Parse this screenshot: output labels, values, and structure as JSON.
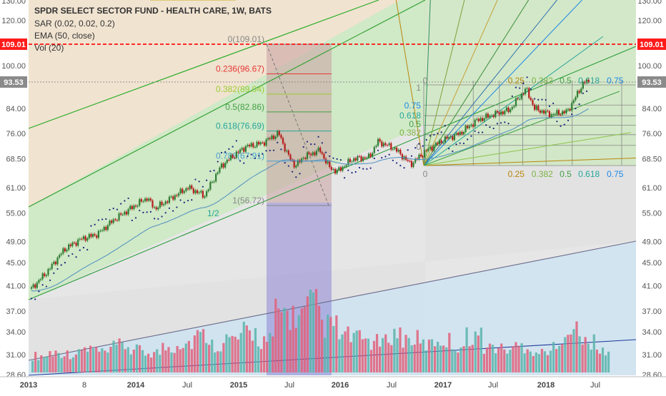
{
  "legend": {
    "title": "SPDR SELECT SECTOR FUND - HEALTH CARE, 1W, BATS",
    "lines": [
      "SAR (0.02, 0.02, 0.2)",
      "EMA (50, close)",
      "Vol (20)"
    ]
  },
  "colors": {
    "price_up": "#2f7d32",
    "price_down": "#b71c1c",
    "vol_up": "#5ab4ac",
    "vol_down": "#e0607a",
    "sar": "#1a237e",
    "ema": "#4f8fc0",
    "hline_red": "#ff0000",
    "badge_red": "#ff1a1a",
    "badge_gray": "#8a8a8a",
    "fib_zone": "#4a4a9a"
  },
  "price_badges": [
    {
      "value": "109.01",
      "style": "red"
    },
    {
      "value": "93.53",
      "style": "gray"
    }
  ],
  "fib_retracement": {
    "levels": [
      {
        "ratio": "0",
        "price": 109.01,
        "label": "0(109.01)",
        "color": "#888888"
      },
      {
        "ratio": "0.236",
        "price": 96.67,
        "label": "0.236(96.67)",
        "color": "#e53935"
      },
      {
        "ratio": "0.382",
        "price": 89.04,
        "label": "0.382(89.04)",
        "color": "#9ccc33"
      },
      {
        "ratio": "0.5",
        "price": 82.86,
        "label": "0.5(82.86)",
        "color": "#43a047"
      },
      {
        "ratio": "0.618",
        "price": 76.69,
        "label": "0.618(76.69)",
        "color": "#26a69a"
      },
      {
        "ratio": "0.786",
        "price": 67.91,
        "label": "0.786(67.91)",
        "color": "#4aa0d0"
      },
      {
        "ratio": "1",
        "price": 56.72,
        "label": "1(56.72)",
        "color": "#888888"
      }
    ],
    "half_label": "1/2"
  },
  "gann_box": {
    "top_labels": [
      "0",
      "0.25",
      "0.382",
      "0.5",
      "0.618",
      "0.75"
    ],
    "bottom_labels": [
      "0",
      "0.25",
      "0.382",
      "0.5",
      "0.618",
      "0.75"
    ],
    "left_labels": [
      "1",
      "0.75",
      "0.618",
      "0.5",
      "0.382",
      "0"
    ],
    "top_colors": [
      "#888888",
      "#b8860b",
      "#7cb342",
      "#43a047",
      "#26a69a",
      "#1e88e5"
    ]
  },
  "chart_data": {
    "type": "candlestick",
    "title": "SPDR SELECT SECTOR FUND - HEALTH CARE, 1W, BATS",
    "x_ticks": [
      "2013",
      "8",
      "2014",
      "Jul",
      "2015",
      "Jul",
      "2016",
      "Jul",
      "2017",
      "Jul",
      "2018",
      "Jul"
    ],
    "y_ticks": [
      "130.00",
      "120.00",
      "109.01",
      "100.00",
      "93.53",
      "84.00",
      "76.00",
      "68.50",
      "61.00",
      "55.00",
      "49.00",
      "45.00",
      "41.00",
      "37.00",
      "34.00",
      "31.00",
      "28.60"
    ],
    "y_scale": "log",
    "y_range": [
      28.6,
      130
    ],
    "horizontal_lines": [
      {
        "value": 109.01,
        "style": "dashed",
        "color": "#ff0000"
      },
      {
        "value": 93.53,
        "style": "dotted",
        "color": "#888888"
      }
    ],
    "close_series": {
      "name": "",
      "points": [
        [
          "2013-01",
          40.5
        ],
        [
          "2013-03",
          43.5
        ],
        [
          "2013-05",
          47.5
        ],
        [
          "2013-07",
          49.5
        ],
        [
          "2013-09",
          50.5
        ],
        [
          "2013-11",
          53.5
        ],
        [
          "2014-01",
          56
        ],
        [
          "2014-03",
          58.5
        ],
        [
          "2014-04",
          56
        ],
        [
          "2014-06",
          58.5
        ],
        [
          "2014-08",
          61
        ],
        [
          "2014-10",
          59
        ],
        [
          "2014-12",
          66.5
        ],
        [
          "2015-01",
          68.5
        ],
        [
          "2015-03",
          72
        ],
        [
          "2015-05",
          73
        ],
        [
          "2015-07",
          76
        ],
        [
          "2015-08",
          70
        ],
        [
          "2015-09",
          66.5
        ],
        [
          "2015-10",
          69
        ],
        [
          "2015-12",
          71
        ],
        [
          "2016-01",
          66.5
        ],
        [
          "2016-02",
          65
        ],
        [
          "2016-04",
          68.5
        ],
        [
          "2016-06",
          69
        ],
        [
          "2016-07",
          73.5
        ],
        [
          "2016-09",
          71.5
        ],
        [
          "2016-11",
          67
        ],
        [
          "2017-01",
          71
        ],
        [
          "2017-03",
          74
        ],
        [
          "2017-05",
          76
        ],
        [
          "2017-07",
          80
        ],
        [
          "2017-09",
          82
        ],
        [
          "2017-11",
          83.5
        ],
        [
          "2018-01",
          91
        ],
        [
          "2018-02",
          84
        ],
        [
          "2018-04",
          82
        ],
        [
          "2018-06",
          83
        ],
        [
          "2018-07",
          88
        ],
        [
          "2018-08",
          93.5
        ]
      ]
    },
    "volume_series": {
      "name": "Vol (20)",
      "relative_values": [
        0.25,
        0.3,
        0.28,
        0.35,
        0.3,
        0.4,
        0.33,
        0.3,
        0.38,
        0.45,
        0.55,
        0.42,
        0.5,
        0.6,
        0.48,
        0.9,
        0.85,
        1.0,
        0.7,
        0.55,
        0.5,
        0.45,
        0.58,
        0.5,
        0.42,
        0.48,
        0.4,
        0.55,
        0.38,
        0.35,
        0.4,
        0.3,
        0.36,
        0.75,
        0.45,
        0.32
      ]
    }
  }
}
